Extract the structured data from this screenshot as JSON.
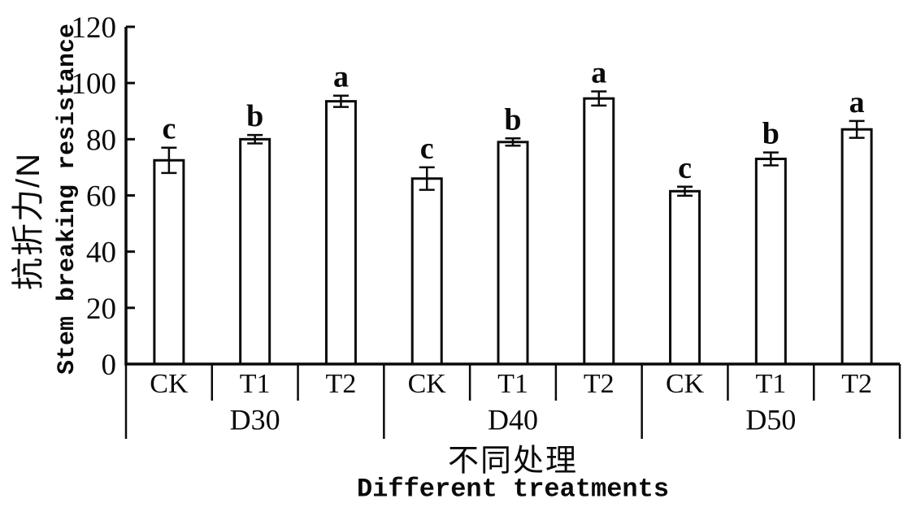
{
  "chart_data": {
    "type": "bar",
    "title": "",
    "ylabel_zh": "抗折力/N",
    "ylabel_en": "Stem breaking resistance",
    "xlabel_zh": "不同处理",
    "xlabel_en": "Different treatments",
    "ylim": [
      0,
      120
    ],
    "ytick_interval": 20,
    "yticks": [
      0,
      20,
      40,
      60,
      80,
      100,
      120
    ],
    "grid": false,
    "legend_position": "none",
    "bar_fill": "#ffffff",
    "line_color": "#0a0a0a",
    "background": "#ffffff",
    "categories": [
      "CK",
      "T1",
      "T2"
    ],
    "groups": [
      {
        "label": "D30",
        "bars": [
          {
            "treatment": "CK",
            "value": 72.5,
            "error": 4.5,
            "sig": "c"
          },
          {
            "treatment": "T1",
            "value": 80.0,
            "error": 1.5,
            "sig": "b"
          },
          {
            "treatment": "T2",
            "value": 93.5,
            "error": 2.0,
            "sig": "a"
          }
        ]
      },
      {
        "label": "D40",
        "bars": [
          {
            "treatment": "CK",
            "value": 66.0,
            "error": 4.0,
            "sig": "c"
          },
          {
            "treatment": "T1",
            "value": 79.0,
            "error": 1.3,
            "sig": "b"
          },
          {
            "treatment": "T2",
            "value": 94.5,
            "error": 2.5,
            "sig": "a"
          }
        ]
      },
      {
        "label": "D50",
        "bars": [
          {
            "treatment": "CK",
            "value": 61.5,
            "error": 1.6,
            "sig": "c"
          },
          {
            "treatment": "T1",
            "value": 73.0,
            "error": 2.3,
            "sig": "b"
          },
          {
            "treatment": "T2",
            "value": 83.5,
            "error": 3.0,
            "sig": "a"
          }
        ]
      }
    ]
  }
}
